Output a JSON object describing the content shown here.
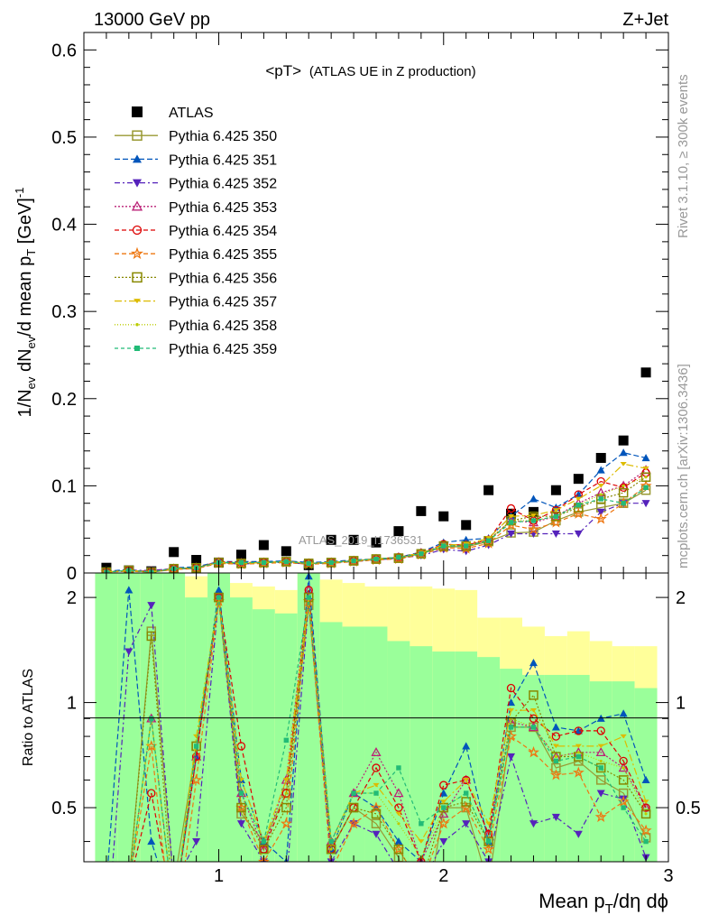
{
  "header": {
    "energy_label": "13000 GeV pp",
    "process_label": "Z+Jet"
  },
  "side_labels": {
    "rivet": "Rivet 3.1.10, ≥ 300k events",
    "mcplots": "mcplots.cern.ch [arXiv:1306.3436]"
  },
  "watermark": "ATLAS_2019_I1736531",
  "colors": {
    "band_outer": "#ffff9a",
    "band_inner": "#9aff9a"
  },
  "chart_data": [
    {
      "type": "scatter",
      "title": "<pT>",
      "subtitle": "(ATLAS UE in Z production)",
      "xlabel": "Mean p_T/dη dφ",
      "ylabel": "1/N_ev dN_ev/d mean p_T [GeV]^-1",
      "xlim": [
        0.4,
        3.0
      ],
      "ylim": [
        0,
        0.62
      ],
      "x_ticks": [
        "1",
        "2",
        "3"
      ],
      "y_ticks": [
        "0",
        "0.1",
        "0.2",
        "0.3",
        "0.4",
        "0.5",
        "0.6"
      ],
      "x": [
        0.5,
        0.6,
        0.7,
        0.8,
        0.9,
        1.0,
        1.1,
        1.2,
        1.3,
        1.4,
        1.5,
        1.6,
        1.7,
        1.8,
        1.9,
        2.0,
        2.1,
        2.2,
        2.3,
        2.4,
        2.5,
        2.6,
        2.7,
        2.8,
        2.9
      ],
      "series": [
        {
          "name": "ATLAS",
          "color": "#000000",
          "marker": "square-filled",
          "dash": "none",
          "values": [
            0.006,
            0.003,
            0.002,
            0.024,
            0.015,
            0.012,
            0.021,
            0.032,
            0.025,
            0.009,
            0.038,
            0.038,
            0.035,
            0.048,
            0.071,
            0.065,
            0.055,
            0.095,
            0.068,
            0.07,
            0.095,
            0.108,
            0.132,
            0.152,
            0.23
          ]
        },
        {
          "name": "Pythia 6.425 350",
          "color": "#999933",
          "marker": "square-open",
          "dash": "solid",
          "values": [
            0.001,
            0.003,
            0.001,
            0.004,
            0.006,
            0.012,
            0.011,
            0.012,
            0.013,
            0.011,
            0.012,
            0.014,
            0.016,
            0.017,
            0.022,
            0.03,
            0.03,
            0.036,
            0.046,
            0.047,
            0.06,
            0.07,
            0.075,
            0.08,
            0.095
          ]
        },
        {
          "name": "Pythia 6.425 351",
          "color": "#0055bb",
          "marker": "triangle-up-filled",
          "dash": "6,3",
          "values": [
            0.002,
            0.004,
            0.001,
            0.006,
            0.007,
            0.013,
            0.013,
            0.013,
            0.014,
            0.012,
            0.013,
            0.015,
            0.016,
            0.018,
            0.024,
            0.035,
            0.038,
            0.04,
            0.065,
            0.085,
            0.075,
            0.09,
            0.118,
            0.138,
            0.132
          ]
        },
        {
          "name": "Pythia 6.425 352",
          "color": "#5522bb",
          "marker": "triangle-down-filled",
          "dash": "6,3,2,3",
          "values": [
            0.001,
            0.003,
            0.003,
            0.005,
            0.005,
            0.012,
            0.01,
            0.012,
            0.012,
            0.01,
            0.012,
            0.013,
            0.015,
            0.017,
            0.02,
            0.027,
            0.025,
            0.032,
            0.045,
            0.045,
            0.045,
            0.045,
            0.07,
            0.08,
            0.08
          ]
        },
        {
          "name": "Pythia 6.425 353",
          "color": "#bb2277",
          "marker": "triangle-up-open",
          "dash": "2,2",
          "values": [
            0.001,
            0.003,
            0.002,
            0.005,
            0.006,
            0.012,
            0.011,
            0.012,
            0.013,
            0.011,
            0.012,
            0.014,
            0.016,
            0.018,
            0.023,
            0.032,
            0.032,
            0.038,
            0.06,
            0.058,
            0.065,
            0.08,
            0.092,
            0.1,
            0.118
          ]
        },
        {
          "name": "Pythia 6.425 354",
          "color": "#dd0000",
          "marker": "circle-open",
          "dash": "5,3",
          "values": [
            0.001,
            0.003,
            0.001,
            0.005,
            0.006,
            0.013,
            0.012,
            0.012,
            0.013,
            0.011,
            0.012,
            0.014,
            0.016,
            0.018,
            0.023,
            0.033,
            0.032,
            0.038,
            0.074,
            0.06,
            0.072,
            0.09,
            0.105,
            0.098,
            0.115
          ]
        },
        {
          "name": "Pythia 6.425 355",
          "color": "#ee7711",
          "marker": "star-open",
          "dash": "5,3",
          "values": [
            0.001,
            0.002,
            0.001,
            0.004,
            0.005,
            0.011,
            0.01,
            0.011,
            0.012,
            0.01,
            0.011,
            0.013,
            0.015,
            0.016,
            0.021,
            0.029,
            0.028,
            0.034,
            0.055,
            0.05,
            0.058,
            0.068,
            0.062,
            0.08,
            0.1
          ]
        },
        {
          "name": "Pythia 6.425 356",
          "color": "#888800",
          "marker": "square-open",
          "dash": "2,2",
          "values": [
            0.001,
            0.003,
            0.001,
            0.005,
            0.006,
            0.012,
            0.011,
            0.012,
            0.013,
            0.011,
            0.012,
            0.014,
            0.016,
            0.017,
            0.022,
            0.031,
            0.031,
            0.037,
            0.06,
            0.065,
            0.065,
            0.075,
            0.085,
            0.092,
            0.11
          ]
        },
        {
          "name": "Pythia 6.425 357",
          "color": "#ddbb00",
          "marker": "tri-filled",
          "dash": "8,3,2,3",
          "values": [
            0.001,
            0.003,
            0.001,
            0.005,
            0.006,
            0.012,
            0.011,
            0.012,
            0.013,
            0.011,
            0.012,
            0.014,
            0.016,
            0.018,
            0.023,
            0.032,
            0.033,
            0.04,
            0.065,
            0.066,
            0.072,
            0.085,
            0.1,
            0.125,
            0.12
          ]
        },
        {
          "name": "Pythia 6.425 358",
          "color": "#bbcc00",
          "marker": "dot-filled",
          "dash": "1,2",
          "values": [
            0.001,
            0.003,
            0.001,
            0.005,
            0.006,
            0.012,
            0.011,
            0.012,
            0.013,
            0.011,
            0.012,
            0.014,
            0.016,
            0.018,
            0.022,
            0.031,
            0.031,
            0.038,
            0.06,
            0.06,
            0.065,
            0.078,
            0.09,
            0.1,
            0.11
          ]
        },
        {
          "name": "Pythia 6.425 359",
          "color": "#22bb77",
          "marker": "square-small-filled",
          "dash": "4,3",
          "values": [
            0.001,
            0.003,
            0.001,
            0.005,
            0.006,
            0.012,
            0.012,
            0.012,
            0.013,
            0.011,
            0.012,
            0.014,
            0.016,
            0.018,
            0.022,
            0.031,
            0.031,
            0.037,
            0.058,
            0.06,
            0.065,
            0.078,
            0.085,
            0.08,
            0.098
          ]
        }
      ]
    },
    {
      "type": "scatter",
      "title": "",
      "xlabel": "Mean p_T/dη dφ",
      "ylabel": "Ratio to ATLAS",
      "xlim": [
        0.4,
        3.0
      ],
      "ylim": [
        0.35,
        2.35
      ],
      "x_ticks": [
        "1",
        "2",
        "3"
      ],
      "y_ticks": [
        "0.5",
        "1",
        "2"
      ],
      "y_ticks_right": [
        "0.5",
        "1",
        "2"
      ],
      "band_x_edges": [
        0.45,
        0.55,
        0.65,
        0.75,
        0.85,
        0.95,
        1.05,
        1.15,
        1.25,
        1.35,
        1.45,
        1.55,
        1.65,
        1.75,
        1.85,
        1.95,
        2.05,
        2.15,
        2.25,
        2.35,
        2.45,
        2.55,
        2.65,
        2.75,
        2.85,
        2.95
      ],
      "band_outer_hi": [
        2.35,
        2.35,
        2.35,
        2.2,
        2.3,
        2.35,
        2.2,
        2.15,
        2.1,
        2.35,
        2.25,
        2.2,
        2.15,
        2.15,
        2.15,
        2.12,
        2.1,
        1.75,
        1.75,
        1.65,
        1.55,
        1.6,
        1.5,
        1.45,
        1.45
      ],
      "band_outer_lo": [
        0.35,
        0.35,
        0.35,
        0.35,
        0.35,
        0.35,
        0.35,
        0.35,
        0.35,
        0.35,
        0.35,
        0.35,
        0.35,
        0.35,
        0.35,
        0.35,
        0.35,
        0.35,
        0.35,
        0.35,
        0.35,
        0.35,
        0.35,
        0.35,
        0.35
      ],
      "band_inner_hi": [
        2.35,
        2.35,
        2.35,
        2.35,
        2.0,
        2.35,
        2.0,
        1.85,
        1.8,
        2.35,
        1.7,
        1.65,
        1.65,
        1.5,
        1.45,
        1.4,
        1.4,
        1.35,
        1.25,
        1.2,
        1.2,
        1.2,
        1.15,
        1.15,
        1.1
      ],
      "band_inner_lo": [
        0.35,
        0.35,
        0.35,
        0.35,
        0.35,
        0.35,
        0.35,
        0.35,
        0.35,
        0.35,
        0.35,
        0.35,
        0.35,
        0.35,
        0.35,
        0.35,
        0.35,
        0.35,
        0.35,
        0.35,
        0.35,
        0.35,
        0.35,
        0.35,
        0.35
      ],
      "series": [
        {
          "name": "Pythia 6.425 350",
          "values": [
            0.2,
            0.3,
            1.6,
            0.3,
            0.75,
            2.0,
            0.48,
            0.4,
            0.55,
            1.9,
            0.38,
            0.5,
            0.45,
            0.36,
            0.2,
            0.5,
            0.5,
            0.3,
            0.85,
            0.85,
            0.65,
            0.68,
            0.6,
            0.55,
            0.41
          ]
        },
        {
          "name": "Pythia 6.425 351",
          "values": [
            0.3,
            2.1,
            0.4,
            0.25,
            0.7,
            2.1,
            0.6,
            0.4,
            0.35,
            2.3,
            0.38,
            0.55,
            0.5,
            0.4,
            0.35,
            0.55,
            0.75,
            0.4,
            1.0,
            1.3,
            0.85,
            0.83,
            0.9,
            0.93,
            0.6
          ]
        },
        {
          "name": "Pythia 6.425 352",
          "values": [
            0.2,
            1.4,
            1.9,
            0.3,
            0.4,
            2.0,
            0.45,
            0.35,
            0.3,
            1.95,
            0.35,
            0.45,
            0.42,
            0.33,
            0.3,
            0.4,
            0.45,
            0.35,
            0.7,
            0.45,
            0.47,
            0.42,
            0.55,
            0.53,
            0.36
          ]
        },
        {
          "name": "Pythia 6.425 353",
          "values": [
            0.2,
            0.3,
            0.9,
            0.25,
            0.7,
            2.0,
            0.55,
            0.38,
            0.6,
            2.1,
            0.4,
            0.55,
            0.72,
            0.55,
            0.35,
            0.48,
            0.6,
            0.42,
            0.88,
            0.85,
            0.7,
            0.72,
            0.72,
            0.65,
            0.5
          ]
        },
        {
          "name": "Pythia 6.425 354",
          "values": [
            0.2,
            0.3,
            0.55,
            0.25,
            0.7,
            2.0,
            0.75,
            0.38,
            0.55,
            2.1,
            0.38,
            0.5,
            0.65,
            0.5,
            0.35,
            0.58,
            0.6,
            0.42,
            1.1,
            0.9,
            0.8,
            0.83,
            0.83,
            0.68,
            0.5
          ]
        },
        {
          "name": "Pythia 6.425 355",
          "values": [
            0.2,
            0.3,
            0.75,
            0.2,
            0.6,
            1.95,
            0.5,
            0.35,
            0.45,
            1.95,
            0.33,
            0.45,
            0.5,
            0.38,
            0.3,
            0.45,
            0.5,
            0.38,
            0.8,
            0.72,
            0.62,
            0.63,
            0.47,
            0.52,
            0.43
          ]
        },
        {
          "name": "Pythia 6.425 356",
          "values": [
            0.2,
            0.3,
            1.55,
            0.25,
            0.75,
            2.0,
            0.5,
            0.38,
            0.5,
            2.0,
            0.38,
            0.5,
            0.48,
            0.38,
            0.3,
            0.5,
            0.52,
            0.4,
            0.88,
            1.05,
            0.7,
            0.7,
            0.65,
            0.6,
            0.48
          ]
        },
        {
          "name": "Pythia 6.425 357",
          "values": [
            0.2,
            0.3,
            0.9,
            0.25,
            0.8,
            2.0,
            0.6,
            0.4,
            0.6,
            2.0,
            0.4,
            0.55,
            0.58,
            0.48,
            0.4,
            0.52,
            0.6,
            0.45,
            0.95,
            0.95,
            0.75,
            0.75,
            0.75,
            0.8,
            0.52
          ]
        },
        {
          "name": "Pythia 6.425 358",
          "values": [
            0.2,
            0.3,
            0.9,
            0.25,
            0.75,
            2.0,
            0.55,
            0.4,
            0.55,
            2.0,
            0.38,
            0.55,
            0.55,
            0.45,
            0.36,
            0.5,
            0.55,
            0.4,
            0.9,
            0.85,
            0.7,
            0.72,
            0.68,
            0.65,
            0.48
          ]
        },
        {
          "name": "Pythia 6.425 359",
          "values": [
            0.2,
            0.3,
            0.9,
            0.25,
            0.75,
            2.0,
            0.55,
            0.4,
            0.78,
            2.0,
            0.4,
            0.55,
            0.55,
            0.65,
            0.45,
            0.5,
            0.55,
            0.4,
            0.85,
            0.85,
            0.68,
            0.7,
            0.65,
            0.5,
            0.4
          ]
        }
      ]
    }
  ]
}
